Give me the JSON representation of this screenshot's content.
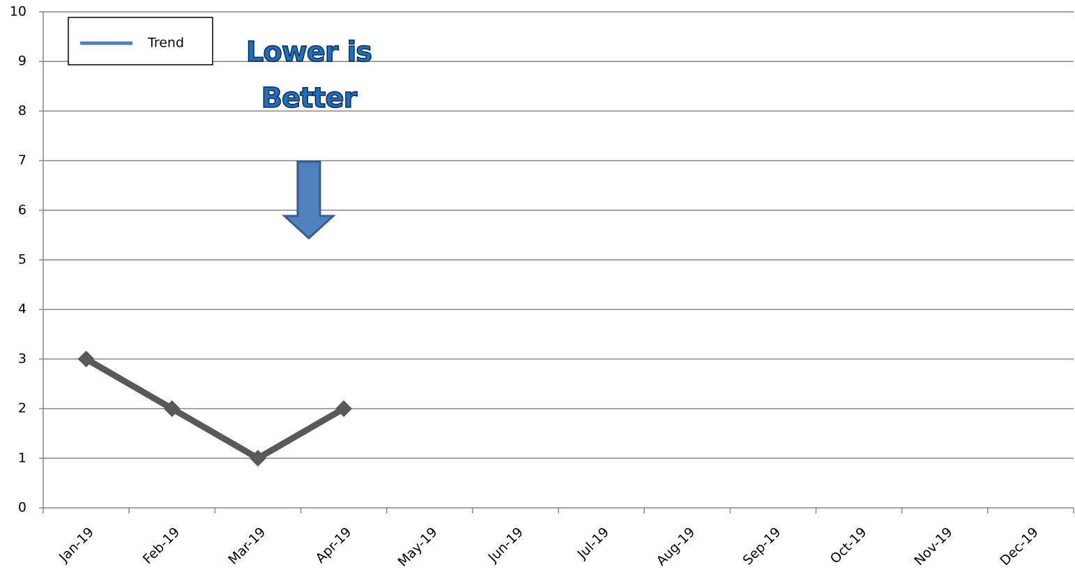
{
  "chart_data": {
    "type": "line",
    "categories": [
      "Jan-19",
      "Feb-19",
      "Mar-19",
      "Apr-19",
      "May-19",
      "Jun-19",
      "Jul-19",
      "Aug-19",
      "Sep-19",
      "Oct-19",
      "Nov-19",
      "Dec-19"
    ],
    "series": [
      {
        "name": "Trend",
        "color": "#595959",
        "legend_color": "#4f81bd",
        "values": [
          3,
          2,
          1,
          2,
          null,
          null,
          null,
          null,
          null,
          null,
          null,
          null
        ]
      }
    ],
    "ylim": [
      0,
      10
    ],
    "yticks": [
      0,
      1,
      2,
      3,
      4,
      5,
      6,
      7,
      8,
      9,
      10
    ],
    "grid": true,
    "legend": "top-left",
    "annotation": "Lower is Better"
  }
}
